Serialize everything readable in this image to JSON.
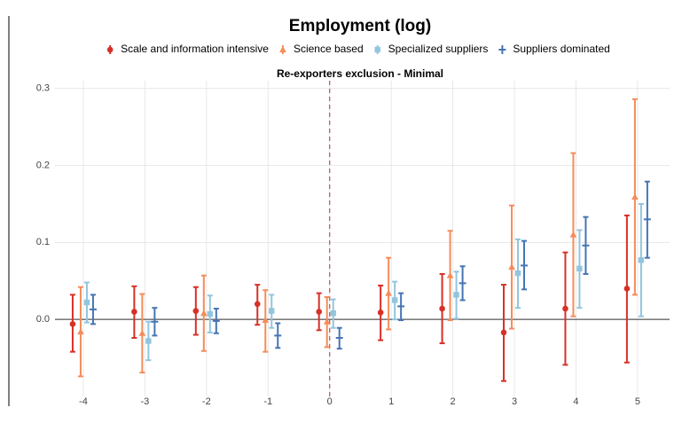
{
  "chart_data": {
    "type": "errorbar",
    "title": "Employment (log)",
    "subtitle": "Re-exporters exclusion - Minimal",
    "x": [
      -4,
      -3,
      -2,
      -1,
      0,
      1,
      2,
      3,
      4,
      5
    ],
    "xlim": [
      -4.46,
      5.52
    ],
    "xticks": [
      -4,
      -3,
      -2,
      -1,
      0,
      1,
      2,
      3,
      4,
      5
    ],
    "ylim": [
      -0.1,
      0.31
    ],
    "yticks": [
      {
        "value": 0,
        "label": "0.0"
      },
      0.1,
      0.2,
      0.3
    ],
    "grid": true,
    "vline": 0,
    "hline": 0,
    "legend": "top",
    "series": [
      {
        "name": "Scale and information intensive",
        "color": "#d73027",
        "marker": "circle",
        "values": [
          -0.006,
          0.01,
          0.011,
          0.02,
          0.01,
          0.009,
          0.014,
          -0.017,
          0.014,
          0.04
        ],
        "lower": [
          -0.042,
          -0.024,
          -0.02,
          -0.007,
          -0.014,
          -0.027,
          -0.031,
          -0.08,
          -0.059,
          -0.056
        ],
        "upper": [
          0.032,
          0.043,
          0.042,
          0.045,
          0.034,
          0.044,
          0.059,
          0.045,
          0.087,
          0.135
        ]
      },
      {
        "name": "Science based",
        "color": "#f58c5a",
        "marker": "triangle",
        "values": [
          -0.016,
          -0.018,
          0.008,
          -0.001,
          -0.003,
          0.034,
          0.057,
          0.068,
          0.11,
          0.159
        ],
        "lower": [
          -0.074,
          -0.069,
          -0.041,
          -0.042,
          -0.036,
          -0.013,
          -0.001,
          -0.012,
          0.004,
          0.032
        ],
        "upper": [
          0.042,
          0.033,
          0.057,
          0.038,
          0.029,
          0.08,
          0.115,
          0.148,
          0.216,
          0.286
        ]
      },
      {
        "name": "Specialized suppliers",
        "color": "#92c5de",
        "marker": "square",
        "values": [
          0.022,
          -0.028,
          0.007,
          0.011,
          0.008,
          0.025,
          0.032,
          0.06,
          0.066,
          0.077
        ],
        "lower": [
          -0.004,
          -0.053,
          -0.017,
          -0.011,
          -0.011,
          0.0,
          0.001,
          0.015,
          0.015,
          0.004
        ],
        "upper": [
          0.048,
          -0.003,
          0.031,
          0.032,
          0.026,
          0.049,
          0.062,
          0.104,
          0.116,
          0.15
        ]
      },
      {
        "name": "Suppliers dominated",
        "color": "#4575b4",
        "marker": "dash",
        "values": [
          0.013,
          -0.003,
          -0.002,
          -0.021,
          -0.024,
          0.017,
          0.047,
          0.07,
          0.096,
          0.13
        ],
        "lower": [
          -0.006,
          -0.021,
          -0.018,
          -0.037,
          -0.038,
          -0.001,
          0.025,
          0.039,
          0.059,
          0.08
        ],
        "upper": [
          0.032,
          0.015,
          0.014,
          -0.005,
          -0.011,
          0.034,
          0.069,
          0.102,
          0.133,
          0.179
        ]
      }
    ]
  }
}
